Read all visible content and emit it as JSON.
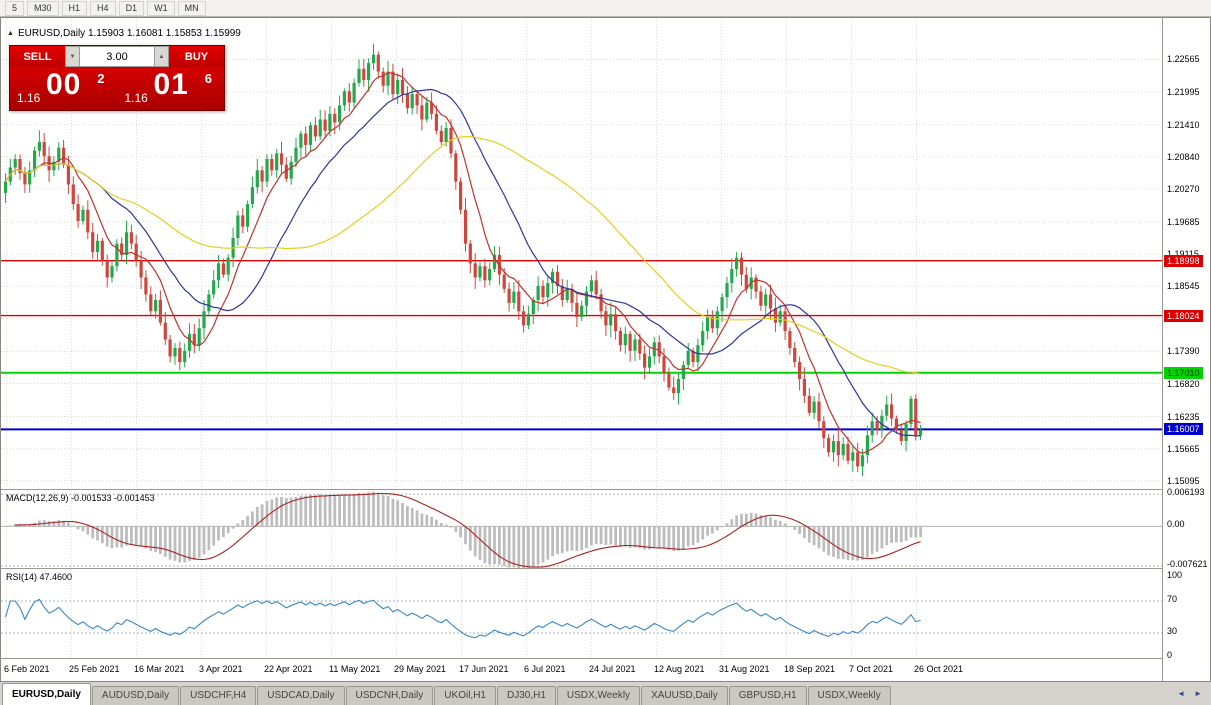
{
  "toolbar": {
    "timeframes": [
      "5",
      "M30",
      "H1",
      "H4",
      "D1",
      "W1",
      "MN"
    ]
  },
  "icons": {
    "subwindow_collapse": "▲",
    "spin_down": "▼",
    "spin_up": "▲",
    "tabs_scroll_left": "◄",
    "tabs_scroll_right": "►"
  },
  "chart": {
    "title": "EURUSD,Daily 1.15903 1.16081 1.15853 1.15999"
  },
  "trade_panel": {
    "sell_label": "SELL",
    "buy_label": "BUY",
    "volume": "3.00",
    "sell_price_prefix": "1.16",
    "sell_price_big": "00",
    "sell_price_sup": "2",
    "buy_price_prefix": "1.16",
    "buy_price_big": "01",
    "buy_price_sup": "6"
  },
  "tabs": {
    "active_index": 0,
    "items": [
      "EURUSD,Daily",
      "AUDUSD,Daily",
      "USDCHF,H4",
      "USDCAD,Daily",
      "USDCNH,Daily",
      "UKOil,H1",
      "DJ30,H1",
      "USDX,Weekly",
      "XAUUSD,Daily",
      "GBPUSD,H1",
      "USDX,Weekly"
    ]
  },
  "chart_data": {
    "type": "candlestick",
    "symbol": "EURUSD",
    "timeframe": "Daily",
    "title": "EURUSD,Daily 1.15903 1.16081 1.15853 1.15999",
    "price_range": [
      1.1495,
      1.233
    ],
    "colors": {
      "bull": "#23a94c",
      "bear": "#cf463d",
      "ma_fast": "#c2332d",
      "ma_mid": "#2f3699",
      "ma_slow": "#e5cf1e",
      "grid": "#dcdcdc",
      "macd_hist": "#bdbdbd",
      "macd_signal": "#a82222",
      "rsi_line": "#3a87c8"
    },
    "y_ticks": [
      "1.22565",
      "1.21995",
      "1.21410",
      "1.20840",
      "1.20270",
      "1.19685",
      "1.19115",
      "1.18545",
      "1.17975",
      "1.17390",
      "1.16820",
      "1.16235",
      "1.15665",
      "1.15095"
    ],
    "x_labels": [
      "6 Feb 2021",
      "25 Feb 2021",
      "16 Mar 2021",
      "3 Apr 2021",
      "22 Apr 2021",
      "11 May 2021",
      "29 May 2021",
      "17 Jun 2021",
      "6 Jul 2021",
      "24 Jul 2021",
      "12 Aug 2021",
      "31 Aug 2021",
      "18 Sep 2021",
      "7 Oct 2021",
      "26 Oct 2021"
    ],
    "hlines": [
      {
        "value": 1.18998,
        "label": "1.18998",
        "color": "#dd0000",
        "text_color": "#ffffff",
        "width": 1.4
      },
      {
        "value": 1.18024,
        "label": "1.18024",
        "color": "#dd0000",
        "text_color": "#ffffff",
        "width": 1.4
      },
      {
        "value": 1.1701,
        "label": "1.17010",
        "color": "#00d400",
        "text_color": "#003300",
        "width": 2
      },
      {
        "value": 1.16007,
        "label": "1.16007",
        "color": "#0000cc",
        "text_color": "#ffffff",
        "width": 2
      }
    ],
    "closes": [
      1.204,
      1.2065,
      1.208,
      1.2055,
      1.2035,
      1.206,
      1.2095,
      1.211,
      1.2085,
      1.206,
      1.2075,
      1.21,
      1.207,
      1.2035,
      1.2,
      1.197,
      1.199,
      1.195,
      1.1915,
      1.1935,
      1.19,
      1.187,
      1.189,
      1.193,
      1.191,
      1.195,
      1.193,
      1.19,
      1.187,
      1.184,
      1.181,
      1.183,
      1.179,
      1.176,
      1.173,
      1.1745,
      1.172,
      1.174,
      1.177,
      1.175,
      1.178,
      1.181,
      1.184,
      1.1865,
      1.1895,
      1.1875,
      1.1905,
      1.194,
      1.198,
      1.196,
      1.2,
      1.203,
      1.206,
      1.204,
      1.208,
      1.206,
      1.209,
      1.207,
      1.2045,
      1.2075,
      1.21,
      1.2125,
      1.2105,
      1.214,
      1.212,
      1.215,
      1.213,
      1.216,
      1.2145,
      1.2175,
      1.22,
      1.218,
      1.2215,
      1.224,
      1.222,
      1.225,
      1.2265,
      1.2235,
      1.221,
      1.2235,
      1.2195,
      1.222,
      1.2195,
      1.217,
      1.2195,
      1.2175,
      1.215,
      1.218,
      1.216,
      1.213,
      1.211,
      1.2135,
      1.209,
      1.204,
      1.199,
      1.193,
      1.1895,
      1.187,
      1.189,
      1.1865,
      1.1885,
      1.191,
      1.1875,
      1.185,
      1.1825,
      1.1845,
      1.181,
      1.1785,
      1.1805,
      1.183,
      1.1855,
      1.1835,
      1.186,
      1.188,
      1.1855,
      1.183,
      1.185,
      1.1825,
      1.18,
      1.182,
      1.1845,
      1.1865,
      1.184,
      1.181,
      1.1785,
      1.1805,
      1.1775,
      1.175,
      1.177,
      1.174,
      1.176,
      1.1735,
      1.171,
      1.173,
      1.1755,
      1.173,
      1.17,
      1.1675,
      1.1665,
      1.169,
      1.1715,
      1.174,
      1.172,
      1.175,
      1.1775,
      1.18,
      1.178,
      1.181,
      1.1835,
      1.186,
      1.1885,
      1.1905,
      1.1875,
      1.185,
      1.187,
      1.1845,
      1.182,
      1.184,
      1.1815,
      1.179,
      1.181,
      1.1775,
      1.1745,
      1.172,
      1.169,
      1.166,
      1.163,
      1.165,
      1.1615,
      1.1585,
      1.156,
      1.158,
      1.1555,
      1.1575,
      1.1545,
      1.156,
      1.1535,
      1.1555,
      1.159,
      1.1615,
      1.16,
      1.1625,
      1.1645,
      1.162,
      1.16,
      1.158,
      1.161,
      1.1655,
      1.159,
      1.16
    ],
    "moving_averages": [
      {
        "period": 8,
        "color_key": "ma_fast"
      },
      {
        "period": 20,
        "color_key": "ma_mid"
      },
      {
        "period": 50,
        "color_key": "ma_slow"
      }
    ],
    "macd": {
      "label": "MACD(12,26,9) -0.001533 -0.001453",
      "fast": 12,
      "slow": 26,
      "signal": 9,
      "range": [
        -0.0082,
        0.0068
      ],
      "ticks": [
        {
          "label": "0.006193",
          "value": 0.006193
        },
        {
          "label": "0.00",
          "value": 0
        },
        {
          "label": "-0.007621",
          "value": -0.007621
        }
      ]
    },
    "rsi": {
      "label": "RSI(14) 47.4600",
      "period": 14,
      "levels": [
        70,
        30
      ],
      "ticks": [
        {
          "label": "100",
          "value": 100
        },
        {
          "label": "70",
          "value": 70
        },
        {
          "label": "30",
          "value": 30
        },
        {
          "label": "0",
          "value": 0
        }
      ]
    }
  }
}
